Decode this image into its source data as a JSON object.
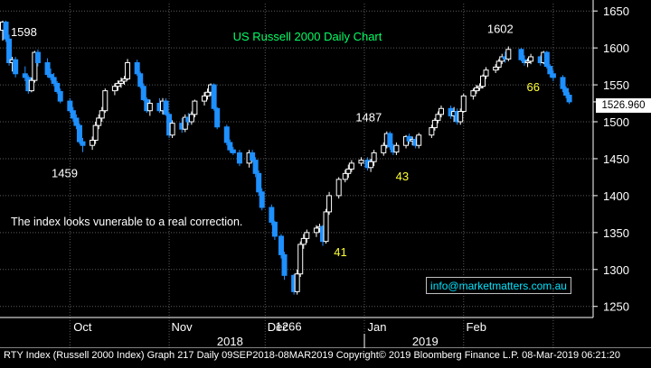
{
  "chart_data": {
    "type": "candlestick",
    "title": "US Russell 2000 Daily Chart",
    "ylim": [
      1235,
      1660
    ],
    "y_ticks": [
      1250,
      1300,
      1350,
      1400,
      1450,
      1500,
      1550,
      1600,
      1650
    ],
    "grid": true,
    "x_labels": {
      "months": [
        "Oct",
        "Nov",
        "Dec",
        "Jan",
        "Feb"
      ],
      "years": [
        "2018",
        "2019"
      ]
    },
    "last_price": "1526.960",
    "candles": [
      {
        "date": "2018-09-10",
        "o": 1624,
        "h": 1637,
        "l": 1610,
        "c": 1635
      },
      {
        "date": "2018-09-11",
        "o": 1635,
        "h": 1637,
        "l": 1608,
        "c": 1612
      },
      {
        "date": "2018-09-12",
        "o": 1612,
        "h": 1618,
        "l": 1576,
        "c": 1580
      },
      {
        "date": "2018-09-13",
        "o": 1580,
        "h": 1588,
        "l": 1568,
        "c": 1584
      },
      {
        "date": "2018-09-14",
        "o": 1584,
        "h": 1588,
        "l": 1560,
        "c": 1565
      },
      {
        "date": "2018-09-17",
        "o": 1565,
        "h": 1575,
        "l": 1555,
        "c": 1560
      },
      {
        "date": "2018-09-18",
        "o": 1560,
        "h": 1563,
        "l": 1538,
        "c": 1542
      },
      {
        "date": "2018-09-19",
        "o": 1542,
        "h": 1560,
        "l": 1540,
        "c": 1556
      },
      {
        "date": "2018-09-20",
        "o": 1556,
        "h": 1596,
        "l": 1553,
        "c": 1594
      },
      {
        "date": "2018-09-21",
        "o": 1594,
        "h": 1598,
        "l": 1575,
        "c": 1580
      },
      {
        "date": "2018-09-24",
        "o": 1580,
        "h": 1586,
        "l": 1560,
        "c": 1564
      },
      {
        "date": "2018-09-25",
        "o": 1564,
        "h": 1572,
        "l": 1556,
        "c": 1560
      },
      {
        "date": "2018-09-26",
        "o": 1560,
        "h": 1566,
        "l": 1548,
        "c": 1552
      },
      {
        "date": "2018-09-27",
        "o": 1552,
        "h": 1555,
        "l": 1538,
        "c": 1541
      },
      {
        "date": "2018-09-28",
        "o": 1541,
        "h": 1545,
        "l": 1525,
        "c": 1528
      },
      {
        "date": "2018-10-01",
        "o": 1528,
        "h": 1532,
        "l": 1512,
        "c": 1515
      },
      {
        "date": "2018-10-02",
        "o": 1515,
        "h": 1520,
        "l": 1500,
        "c": 1505
      },
      {
        "date": "2018-10-03",
        "o": 1505,
        "h": 1510,
        "l": 1490,
        "c": 1495
      },
      {
        "date": "2018-10-04",
        "o": 1495,
        "h": 1498,
        "l": 1470,
        "c": 1473
      },
      {
        "date": "2018-10-05",
        "o": 1473,
        "h": 1478,
        "l": 1459,
        "c": 1468
      },
      {
        "date": "2018-10-08",
        "o": 1468,
        "h": 1480,
        "l": 1462,
        "c": 1475
      },
      {
        "date": "2018-10-09",
        "o": 1475,
        "h": 1500,
        "l": 1470,
        "c": 1495
      },
      {
        "date": "2018-10-10",
        "o": 1495,
        "h": 1510,
        "l": 1490,
        "c": 1505
      },
      {
        "date": "2018-10-11",
        "o": 1505,
        "h": 1520,
        "l": 1500,
        "c": 1515
      },
      {
        "date": "2018-10-12",
        "o": 1515,
        "h": 1545,
        "l": 1512,
        "c": 1542
      },
      {
        "date": "2018-10-15",
        "o": 1542,
        "h": 1552,
        "l": 1536,
        "c": 1548
      },
      {
        "date": "2018-10-16",
        "o": 1548,
        "h": 1556,
        "l": 1542,
        "c": 1552
      },
      {
        "date": "2018-10-17",
        "o": 1552,
        "h": 1560,
        "l": 1546,
        "c": 1555
      },
      {
        "date": "2018-10-18",
        "o": 1555,
        "h": 1562,
        "l": 1550,
        "c": 1558
      },
      {
        "date": "2018-10-19",
        "o": 1558,
        "h": 1585,
        "l": 1556,
        "c": 1580
      },
      {
        "date": "2018-10-22",
        "o": 1580,
        "h": 1584,
        "l": 1562,
        "c": 1565
      },
      {
        "date": "2018-10-23",
        "o": 1565,
        "h": 1568,
        "l": 1545,
        "c": 1548
      },
      {
        "date": "2018-10-24",
        "o": 1548,
        "h": 1552,
        "l": 1528,
        "c": 1530
      },
      {
        "date": "2018-10-25",
        "o": 1530,
        "h": 1533,
        "l": 1512,
        "c": 1515
      },
      {
        "date": "2018-10-26",
        "o": 1515,
        "h": 1530,
        "l": 1508,
        "c": 1525
      },
      {
        "date": "2018-10-29",
        "o": 1525,
        "h": 1532,
        "l": 1512,
        "c": 1515
      },
      {
        "date": "2018-10-30",
        "o": 1515,
        "h": 1532,
        "l": 1510,
        "c": 1528
      },
      {
        "date": "2018-10-31",
        "o": 1528,
        "h": 1532,
        "l": 1508,
        "c": 1510
      },
      {
        "date": "2018-11-01",
        "o": 1510,
        "h": 1512,
        "l": 1478,
        "c": 1482
      },
      {
        "date": "2018-11-02",
        "o": 1482,
        "h": 1502,
        "l": 1478,
        "c": 1498
      },
      {
        "date": "2018-11-05",
        "o": 1498,
        "h": 1505,
        "l": 1485,
        "c": 1490
      },
      {
        "date": "2018-11-06",
        "o": 1490,
        "h": 1510,
        "l": 1486,
        "c": 1506
      },
      {
        "date": "2018-11-07",
        "o": 1506,
        "h": 1512,
        "l": 1495,
        "c": 1500
      },
      {
        "date": "2018-11-08",
        "o": 1500,
        "h": 1514,
        "l": 1496,
        "c": 1510
      },
      {
        "date": "2018-11-09",
        "o": 1510,
        "h": 1530,
        "l": 1506,
        "c": 1528
      },
      {
        "date": "2018-11-12",
        "o": 1528,
        "h": 1540,
        "l": 1522,
        "c": 1535
      },
      {
        "date": "2018-11-13",
        "o": 1535,
        "h": 1545,
        "l": 1530,
        "c": 1540
      },
      {
        "date": "2018-11-14",
        "o": 1540,
        "h": 1552,
        "l": 1535,
        "c": 1550
      },
      {
        "date": "2018-11-15",
        "o": 1550,
        "h": 1552,
        "l": 1515,
        "c": 1518
      },
      {
        "date": "2018-11-16",
        "o": 1518,
        "h": 1520,
        "l": 1490,
        "c": 1493
      },
      {
        "date": "2018-11-19",
        "o": 1493,
        "h": 1496,
        "l": 1468,
        "c": 1472
      },
      {
        "date": "2018-11-20",
        "o": 1472,
        "h": 1476,
        "l": 1458,
        "c": 1462
      },
      {
        "date": "2018-11-21",
        "o": 1462,
        "h": 1466,
        "l": 1455,
        "c": 1458
      },
      {
        "date": "2018-11-23",
        "o": 1458,
        "h": 1462,
        "l": 1440,
        "c": 1444
      },
      {
        "date": "2018-11-26",
        "o": 1444,
        "h": 1462,
        "l": 1438,
        "c": 1458
      },
      {
        "date": "2018-11-27",
        "o": 1458,
        "h": 1462,
        "l": 1445,
        "c": 1448
      },
      {
        "date": "2018-11-28",
        "o": 1448,
        "h": 1452,
        "l": 1425,
        "c": 1430
      },
      {
        "date": "2018-11-29",
        "o": 1430,
        "h": 1434,
        "l": 1400,
        "c": 1405
      },
      {
        "date": "2018-11-30",
        "o": 1405,
        "h": 1410,
        "l": 1380,
        "c": 1384
      },
      {
        "date": "2018-12-03",
        "o": 1384,
        "h": 1388,
        "l": 1360,
        "c": 1364
      },
      {
        "date": "2018-12-04",
        "o": 1364,
        "h": 1366,
        "l": 1340,
        "c": 1345
      },
      {
        "date": "2018-12-06",
        "o": 1345,
        "h": 1348,
        "l": 1315,
        "c": 1320
      },
      {
        "date": "2018-12-07",
        "o": 1320,
        "h": 1324,
        "l": 1286,
        "c": 1292
      },
      {
        "date": "2018-12-10",
        "o": 1292,
        "h": 1294,
        "l": 1266,
        "c": 1270
      },
      {
        "date": "2018-12-11",
        "o": 1270,
        "h": 1300,
        "l": 1266,
        "c": 1294
      },
      {
        "date": "2018-12-12",
        "o": 1294,
        "h": 1338,
        "l": 1290,
        "c": 1334
      },
      {
        "date": "2018-12-13",
        "o": 1334,
        "h": 1348,
        "l": 1328,
        "c": 1342
      },
      {
        "date": "2018-12-14",
        "o": 1342,
        "h": 1354,
        "l": 1336,
        "c": 1350
      },
      {
        "date": "2018-12-17",
        "o": 1350,
        "h": 1360,
        "l": 1344,
        "c": 1356
      },
      {
        "date": "2018-12-18",
        "o": 1356,
        "h": 1362,
        "l": 1350,
        "c": 1358
      },
      {
        "date": "2018-12-19",
        "o": 1358,
        "h": 1360,
        "l": 1332,
        "c": 1338
      },
      {
        "date": "2018-12-20",
        "o": 1338,
        "h": 1382,
        "l": 1335,
        "c": 1378
      },
      {
        "date": "2018-12-21",
        "o": 1378,
        "h": 1405,
        "l": 1374,
        "c": 1400
      },
      {
        "date": "2018-12-24",
        "o": 1400,
        "h": 1425,
        "l": 1396,
        "c": 1422
      },
      {
        "date": "2018-12-26",
        "o": 1422,
        "h": 1435,
        "l": 1418,
        "c": 1430
      },
      {
        "date": "2018-12-27",
        "o": 1430,
        "h": 1442,
        "l": 1424,
        "c": 1436
      },
      {
        "date": "2018-12-28",
        "o": 1436,
        "h": 1448,
        "l": 1432,
        "c": 1444
      },
      {
        "date": "2018-12-31",
        "o": 1444,
        "h": 1452,
        "l": 1440,
        "c": 1448
      },
      {
        "date": "2019-01-02",
        "o": 1448,
        "h": 1452,
        "l": 1434,
        "c": 1438
      },
      {
        "date": "2019-01-03",
        "o": 1438,
        "h": 1450,
        "l": 1432,
        "c": 1446
      },
      {
        "date": "2019-01-04",
        "o": 1446,
        "h": 1462,
        "l": 1440,
        "c": 1458
      },
      {
        "date": "2019-01-07",
        "o": 1458,
        "h": 1472,
        "l": 1454,
        "c": 1468
      },
      {
        "date": "2019-01-08",
        "o": 1468,
        "h": 1487,
        "l": 1464,
        "c": 1484
      },
      {
        "date": "2019-01-09",
        "o": 1484,
        "h": 1487,
        "l": 1462,
        "c": 1466
      },
      {
        "date": "2019-01-10",
        "o": 1466,
        "h": 1470,
        "l": 1455,
        "c": 1459
      },
      {
        "date": "2019-01-11",
        "o": 1459,
        "h": 1472,
        "l": 1455,
        "c": 1468
      },
      {
        "date": "2019-01-14",
        "o": 1468,
        "h": 1482,
        "l": 1464,
        "c": 1480
      },
      {
        "date": "2019-01-15",
        "o": 1480,
        "h": 1484,
        "l": 1470,
        "c": 1474
      },
      {
        "date": "2019-01-16",
        "o": 1474,
        "h": 1480,
        "l": 1468,
        "c": 1476
      },
      {
        "date": "2019-01-17",
        "o": 1476,
        "h": 1480,
        "l": 1464,
        "c": 1468
      },
      {
        "date": "2019-01-18",
        "o": 1468,
        "h": 1485,
        "l": 1464,
        "c": 1482
      },
      {
        "date": "2019-01-22",
        "o": 1482,
        "h": 1496,
        "l": 1478,
        "c": 1492
      },
      {
        "date": "2019-01-23",
        "o": 1492,
        "h": 1505,
        "l": 1488,
        "c": 1502
      },
      {
        "date": "2019-01-24",
        "o": 1502,
        "h": 1514,
        "l": 1498,
        "c": 1510
      },
      {
        "date": "2019-01-25",
        "o": 1510,
        "h": 1522,
        "l": 1506,
        "c": 1518
      },
      {
        "date": "2019-01-28",
        "o": 1518,
        "h": 1522,
        "l": 1504,
        "c": 1508
      },
      {
        "date": "2019-01-29",
        "o": 1508,
        "h": 1520,
        "l": 1500,
        "c": 1514
      },
      {
        "date": "2019-01-30",
        "o": 1514,
        "h": 1518,
        "l": 1496,
        "c": 1500
      },
      {
        "date": "2019-01-31",
        "o": 1500,
        "h": 1518,
        "l": 1496,
        "c": 1514
      },
      {
        "date": "2019-02-01",
        "o": 1514,
        "h": 1538,
        "l": 1512,
        "c": 1535
      },
      {
        "date": "2019-02-04",
        "o": 1535,
        "h": 1545,
        "l": 1530,
        "c": 1542
      },
      {
        "date": "2019-02-05",
        "o": 1542,
        "h": 1550,
        "l": 1538,
        "c": 1546
      },
      {
        "date": "2019-02-06",
        "o": 1546,
        "h": 1552,
        "l": 1542,
        "c": 1548
      },
      {
        "date": "2019-02-07",
        "o": 1548,
        "h": 1564,
        "l": 1545,
        "c": 1562
      },
      {
        "date": "2019-02-08",
        "o": 1562,
        "h": 1574,
        "l": 1558,
        "c": 1570
      },
      {
        "date": "2019-02-11",
        "o": 1570,
        "h": 1578,
        "l": 1566,
        "c": 1574
      },
      {
        "date": "2019-02-12",
        "o": 1574,
        "h": 1585,
        "l": 1570,
        "c": 1582
      },
      {
        "date": "2019-02-13",
        "o": 1582,
        "h": 1592,
        "l": 1578,
        "c": 1588
      },
      {
        "date": "2019-02-14",
        "o": 1588,
        "h": 1595,
        "l": 1580,
        "c": 1585
      },
      {
        "date": "2019-02-15",
        "o": 1585,
        "h": 1602,
        "l": 1582,
        "c": 1598
      },
      {
        "date": "2019-02-19",
        "o": 1598,
        "h": 1600,
        "l": 1582,
        "c": 1584
      },
      {
        "date": "2019-02-20",
        "o": 1584,
        "h": 1590,
        "l": 1576,
        "c": 1580
      },
      {
        "date": "2019-02-21",
        "o": 1580,
        "h": 1586,
        "l": 1574,
        "c": 1582
      },
      {
        "date": "2019-02-22",
        "o": 1582,
        "h": 1592,
        "l": 1578,
        "c": 1588
      },
      {
        "date": "2019-02-25",
        "o": 1588,
        "h": 1590,
        "l": 1576,
        "c": 1580
      },
      {
        "date": "2019-02-26",
        "o": 1580,
        "h": 1596,
        "l": 1578,
        "c": 1594
      },
      {
        "date": "2019-02-27",
        "o": 1594,
        "h": 1596,
        "l": 1572,
        "c": 1575
      },
      {
        "date": "2019-02-28",
        "o": 1575,
        "h": 1578,
        "l": 1560,
        "c": 1565
      },
      {
        "date": "2019-03-01",
        "o": 1565,
        "h": 1570,
        "l": 1555,
        "c": 1560
      },
      {
        "date": "2019-03-04",
        "o": 1560,
        "h": 1563,
        "l": 1540,
        "c": 1545
      },
      {
        "date": "2019-03-05",
        "o": 1545,
        "h": 1548,
        "l": 1532,
        "c": 1536
      },
      {
        "date": "2019-03-06",
        "o": 1536,
        "h": 1540,
        "l": 1524,
        "c": 1527
      }
    ],
    "annotations": [
      {
        "text": "1598",
        "kind": "level",
        "date": "2018-09-20",
        "y": 1598
      },
      {
        "text": "1459",
        "kind": "level",
        "date": "2018-10-05",
        "y": 1459
      },
      {
        "text": "1266",
        "kind": "level",
        "date": "2018-12-10",
        "y": 1266
      },
      {
        "text": "1487",
        "kind": "level",
        "date": "2019-01-08",
        "y": 1487
      },
      {
        "text": "1602",
        "kind": "level",
        "date": "2019-02-15",
        "y": 1602
      },
      {
        "text": "41",
        "kind": "count",
        "date": "2018-12-20",
        "y": 1335
      },
      {
        "text": "43",
        "kind": "count",
        "date": "2019-01-10",
        "y": 1455
      },
      {
        "text": "66",
        "kind": "count",
        "date": "2019-02-25",
        "y": 1576
      }
    ],
    "note": "The index looks vunerable to a real correction.",
    "colors": {
      "up": "#ffffff",
      "down": "#1e90ff",
      "grid": "#5a5a5a",
      "title": "#00ff66",
      "counts": "#ffff33",
      "link": "#00e5ff"
    }
  },
  "watermark": "info@marketmatters.com.au",
  "footer": "RTY Index (Russell 2000 Index) Graph 217  Daily 09SEP2018-08MAR2019 Copyright© 2019 Bloomberg Finance L.P.  08-Mar-2019 06:21:20"
}
